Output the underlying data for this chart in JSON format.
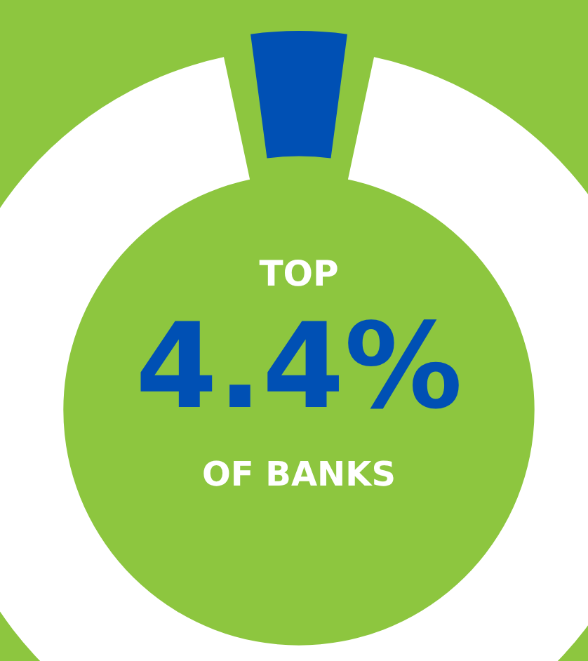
{
  "chart_data": {
    "type": "donut",
    "categories": [
      null,
      null
    ],
    "values": [
      4.4,
      95.6
    ],
    "colors": [
      "#0050b4",
      "#ffffff"
    ],
    "annotations": [
      "TOP",
      "4.4%",
      "OF BANKS"
    ]
  }
}
